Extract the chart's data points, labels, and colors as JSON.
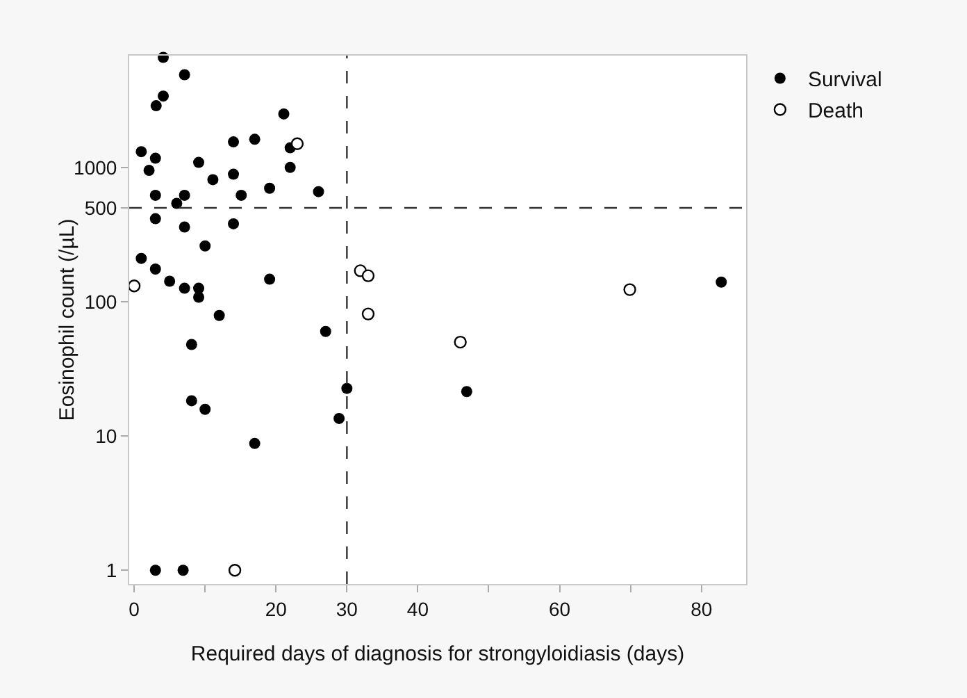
{
  "chart_data": {
    "type": "scatter",
    "xlabel": "Required days of diagnosis for strongyloidiasis (days)",
    "ylabel": "Eosinophil count (/µL)",
    "log": "y",
    "grid": false,
    "legend": "top right",
    "marker": "circle",
    "xlim": [
      -0.7,
      86.3
    ],
    "xticks": [
      0,
      {
        "value": 10,
        "label": null
      },
      20,
      30,
      40,
      {
        "value": 50,
        "label": null
      },
      60,
      {
        "value": 70,
        "label": null
      },
      80
    ],
    "ylim": [
      0.79,
      6800
    ],
    "yticks": [
      1,
      10,
      100,
      500,
      1000
    ],
    "ref_lines": [
      {
        "axis": "x",
        "value": 30,
        "line_style": "dashed",
        "color": "#333333"
      },
      {
        "axis": "y",
        "value": 500,
        "line_style": "dashed",
        "color": "#333333"
      }
    ],
    "series": [
      {
        "name": "Survival",
        "color": "#000000",
        "x": [
          4.1,
          7.1,
          4.1,
          3.1,
          21.1,
          1.0,
          3.0,
          2.1,
          9.1,
          14.0,
          17.0,
          22.0,
          22.0,
          11.1,
          14.0,
          19.1,
          26.0,
          15.1,
          3.0,
          7.1,
          6.0,
          3.0,
          7.1,
          14.0,
          10.0,
          1.0,
          3.0,
          5.0,
          7.1,
          9.1,
          9.1,
          19.1,
          12.0,
          27.0,
          8.1,
          8.1,
          10.0,
          17.0,
          28.9,
          30.0,
          3.0,
          6.9,
          46.9,
          82.8
        ],
        "values": [
          6600,
          4900,
          3400,
          2880,
          2500,
          1310,
          1170,
          950,
          1090,
          1550,
          1620,
          1400,
          1000,
          810,
          890,
          700,
          660,
          620,
          620,
          620,
          540,
          415,
          360,
          380,
          260,
          210,
          175,
          142,
          126,
          126,
          108,
          147,
          79,
          60,
          48,
          18.3,
          15.8,
          8.8,
          13.5,
          22.6,
          1,
          1,
          21.4,
          140
        ]
      },
      {
        "name": "Death",
        "color": "#000000",
        "marker": "circle-open",
        "x": [
          0,
          23.0,
          31.9,
          33.0,
          33.0,
          46.0,
          69.9,
          14.2
        ],
        "values": [
          131,
          1500,
          170,
          156,
          81,
          50,
          123,
          1
        ]
      }
    ]
  }
}
